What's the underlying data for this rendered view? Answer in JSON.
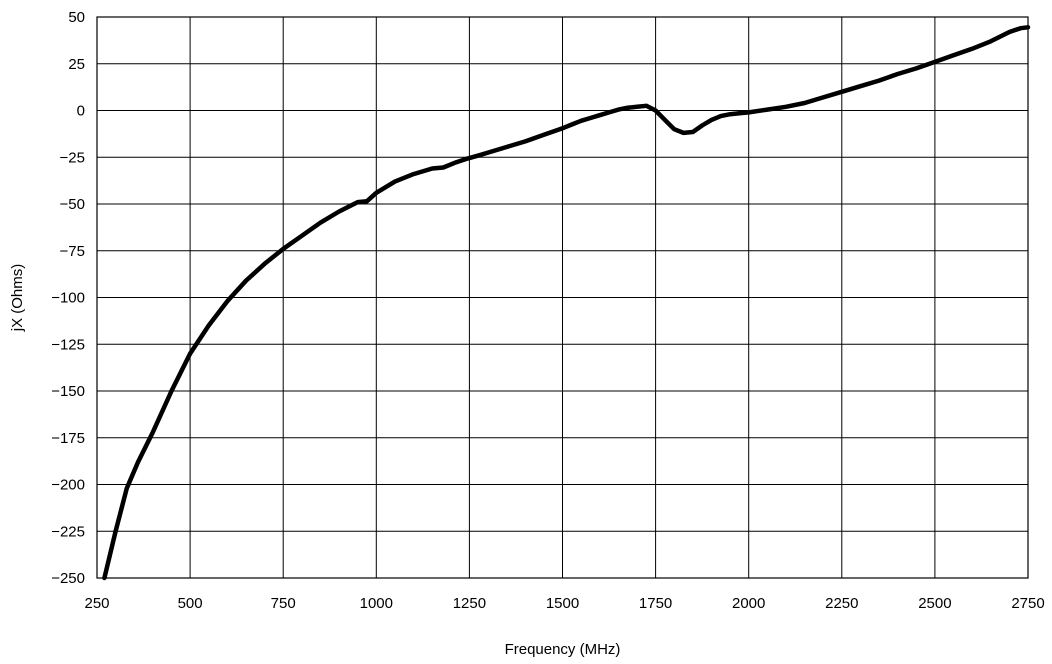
{
  "chart_data": {
    "type": "line",
    "title": "",
    "xlabel": "Frequency (MHz)",
    "ylabel": "jX (Ohms)",
    "xlim": [
      250,
      2750
    ],
    "ylim": [
      -250,
      50
    ],
    "xticks": [
      250,
      500,
      750,
      1000,
      1250,
      1500,
      1750,
      2000,
      2250,
      2500,
      2750
    ],
    "yticks": [
      50,
      25,
      0,
      -25,
      -50,
      -75,
      -100,
      -125,
      -150,
      -175,
      -200,
      -225,
      -250
    ],
    "xtick_labels": [
      "250",
      "500",
      "750",
      "1000",
      "1250",
      "1500",
      "1750",
      "2000",
      "2250",
      "2500",
      "2750"
    ],
    "ytick_labels": [
      "50",
      "25",
      "0",
      "−25",
      "−50",
      "−75",
      "−100",
      "−125",
      "−150",
      "−175",
      "−200",
      "−225",
      "−250"
    ],
    "grid": true,
    "line_color": "#000000",
    "series": [
      {
        "x": [
          270,
          300,
          330,
          360,
          400,
          450,
          500,
          550,
          600,
          650,
          700,
          750,
          800,
          850,
          900,
          950,
          975,
          1000,
          1025,
          1050,
          1100,
          1150,
          1180,
          1210,
          1240,
          1275,
          1300,
          1350,
          1400,
          1450,
          1500,
          1525,
          1550,
          1575,
          1600,
          1625,
          1650,
          1675,
          1700,
          1725,
          1750,
          1775,
          1800,
          1825,
          1850,
          1875,
          1900,
          1925,
          1950,
          1975,
          2000,
          2050,
          2100,
          2150,
          2200,
          2250,
          2300,
          2350,
          2400,
          2450,
          2500,
          2550,
          2600,
          2650,
          2700,
          2730,
          2750
        ],
        "y": [
          -250,
          -225,
          -202,
          -188,
          -172,
          -150,
          -130,
          -115,
          -102,
          -91,
          -82,
          -74,
          -67,
          -60,
          -54,
          -49,
          -48.5,
          -44,
          -41,
          -38,
          -34,
          -31,
          -30.5,
          -28,
          -26,
          -24,
          -22.5,
          -19.5,
          -16.5,
          -13,
          -9.5,
          -7.5,
          -5.5,
          -4,
          -2.5,
          -1,
          0.5,
          1.5,
          2,
          2.5,
          0,
          -5,
          -10,
          -12,
          -11.5,
          -8,
          -5,
          -3,
          -2,
          -1.5,
          -1,
          0.5,
          2,
          4,
          7,
          10,
          13,
          16,
          19.5,
          22.5,
          26,
          29.5,
          33,
          37,
          42,
          44,
          44.5
        ]
      }
    ]
  }
}
